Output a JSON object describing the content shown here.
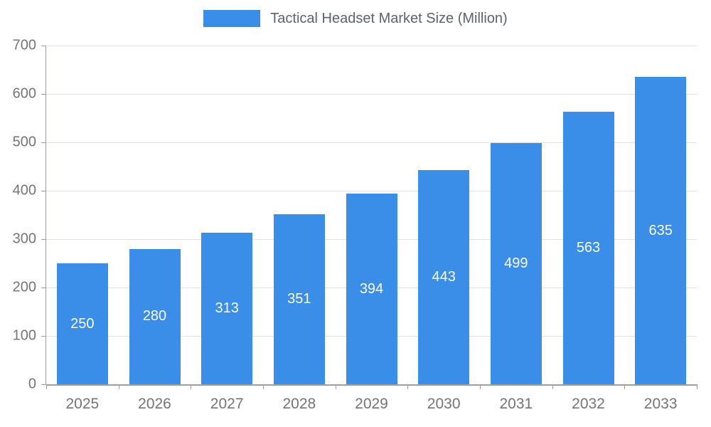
{
  "colors": {
    "bar": "#3A8EE8",
    "axis": "#9aa0a6",
    "grid": "#e2e2e2",
    "tick_label": "#757575",
    "bar_label": "#ffffff",
    "legend_text": "#5a646e"
  },
  "chart_data": {
    "type": "bar",
    "title": "Tactical Headset Market Size (Million)",
    "categories": [
      "2025",
      "2026",
      "2027",
      "2028",
      "2029",
      "2030",
      "2031",
      "2032",
      "2033"
    ],
    "values": [
      250,
      280,
      313,
      351,
      394,
      443,
      499,
      563,
      635
    ],
    "xlabel": "",
    "ylabel": "",
    "ylim": [
      0,
      700
    ],
    "ytick_interval": 100,
    "grid": true,
    "legend_position": "top",
    "bar_value_labels": "inside-center"
  }
}
